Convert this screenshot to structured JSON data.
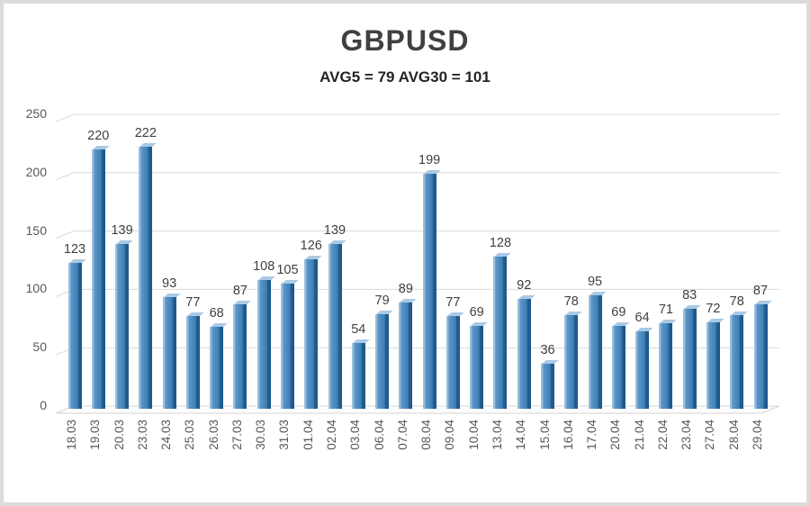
{
  "chart_data": {
    "type": "bar",
    "style": "3d-column",
    "title": "GBPUSD",
    "subtitle": "AVG5 = 79 AVG30 = 101",
    "categories": [
      "18.03",
      "19.03",
      "20.03",
      "23.03",
      "24.03",
      "25.03",
      "26.03",
      "27.03",
      "30.03",
      "31.03",
      "01.04",
      "02.04",
      "03.04",
      "06.04",
      "07.04",
      "08.04",
      "09.04",
      "10.04",
      "13.04",
      "14.04",
      "15.04",
      "16.04",
      "17.04",
      "20.04",
      "21.04",
      "22.04",
      "23.04",
      "27.04",
      "28.04",
      "29.04"
    ],
    "values": [
      123,
      220,
      139,
      222,
      93,
      77,
      68,
      87,
      108,
      105,
      126,
      139,
      54,
      79,
      89,
      199,
      77,
      69,
      128,
      92,
      36,
      78,
      95,
      69,
      64,
      71,
      83,
      72,
      78,
      87
    ],
    "data_labels": true,
    "xlabel": "",
    "ylabel": "",
    "ylim": [
      0,
      250
    ],
    "yticks": [
      0,
      50,
      100,
      150,
      200,
      250
    ],
    "grid": true,
    "legend": false,
    "colors": {
      "bar_face": "#4586bd",
      "bar_highlight": "#9cc0de",
      "bar_dark_edge": "#1d578b",
      "bar_top": "#a9c9e5",
      "gridline": "#d9d9d9",
      "floor_stroke": "#d4d4d4",
      "axis_text": "#595959",
      "value_text": "#3f3f3f",
      "title_text": "#404040",
      "border": "#dcdcdc"
    }
  }
}
